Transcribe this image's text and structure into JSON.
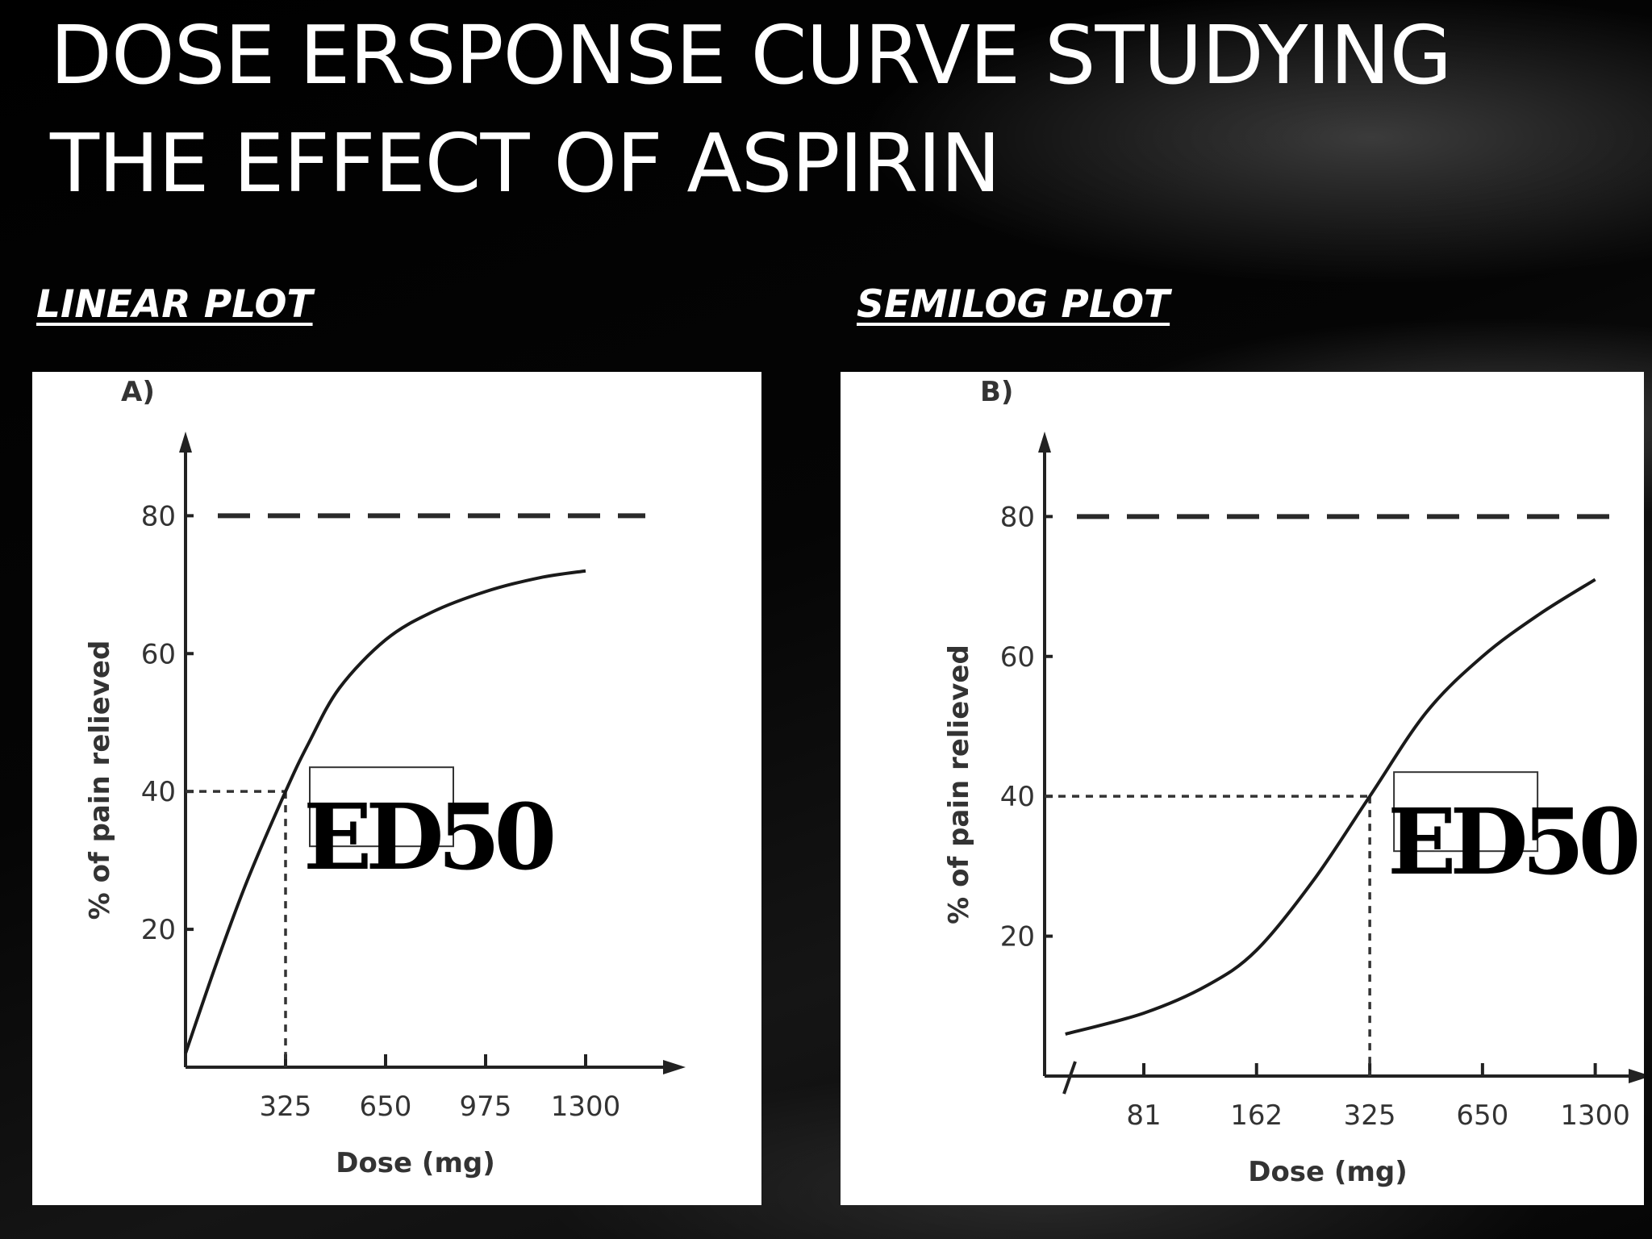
{
  "slide": {
    "title_line1": "DOSE ERSPONSE CURVE STUDYING",
    "title_line2": "THE EFFECT OF ASPIRIN",
    "left_heading": "LINEAR PLOT",
    "right_heading": "SEMILOG PLOT",
    "annotation": "ED50"
  },
  "chart_data": [
    {
      "type": "line",
      "panel_label": "A)",
      "xlabel": "Dose (mg)",
      "ylabel": "% of pain relieved",
      "x_ticks": [
        "325",
        "650",
        "975",
        "1300"
      ],
      "y_ticks": [
        "20",
        "40",
        "60",
        "80"
      ],
      "xlim": [
        0,
        1400
      ],
      "ylim": [
        0,
        88
      ],
      "reference_line_y": 80,
      "ed50": {
        "x": 325,
        "y": 40,
        "label": "ED50"
      },
      "series": [
        {
          "x": [
            0,
            100,
            200,
            325,
            400,
            500,
            650,
            800,
            975,
            1150,
            1300
          ],
          "y": [
            2,
            15,
            27,
            40,
            47,
            55,
            62,
            66,
            69,
            71,
            72
          ]
        }
      ]
    },
    {
      "type": "line",
      "panel_label": "B)",
      "xlabel": "Dose (mg)",
      "ylabel": "% of pain relieved",
      "x_scale": "log",
      "x_ticks": [
        "81",
        "162",
        "325",
        "650",
        "1300"
      ],
      "y_ticks": [
        "20",
        "40",
        "60",
        "80"
      ],
      "xlim": [
        40,
        1600
      ],
      "ylim": [
        0,
        88
      ],
      "reference_line_y": 80,
      "ed50": {
        "x": 325,
        "y": 40,
        "label": "ED50"
      },
      "series": [
        {
          "x": [
            50,
            81,
            120,
            162,
            230,
            325,
            460,
            650,
            920,
            1300
          ],
          "y": [
            6,
            9,
            13,
            18,
            28,
            40,
            52,
            60,
            66,
            71
          ]
        }
      ]
    }
  ]
}
